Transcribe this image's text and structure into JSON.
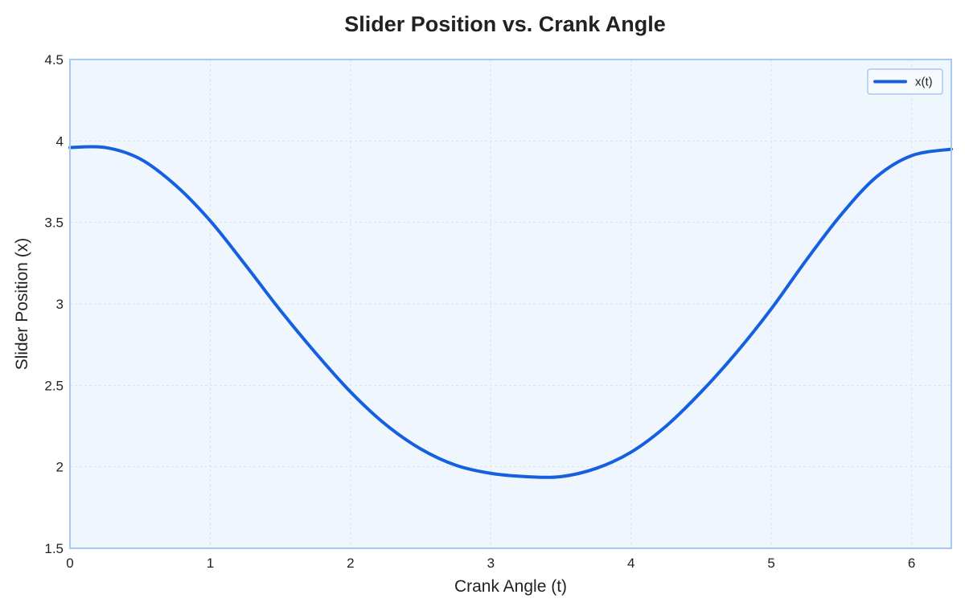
{
  "chart_data": {
    "type": "line",
    "title": "Slider Position vs. Crank Angle",
    "xlabel": "Crank Angle (t)",
    "ylabel": "Slider Position (x)",
    "xlim": [
      0,
      6.2832
    ],
    "ylim": [
      1.5,
      4.5
    ],
    "xticks": [
      0,
      1,
      2,
      3,
      4,
      5,
      6
    ],
    "xtick_labels": [
      "0",
      "1",
      "2",
      "3",
      "4",
      "5",
      "6"
    ],
    "yticks": [
      1.5,
      2,
      2.5,
      3,
      3.5,
      4,
      4.5
    ],
    "ytick_labels": [
      "1.5",
      "2",
      "2.5",
      "3",
      "3.5",
      "4",
      "4.5"
    ],
    "grid": true,
    "legend_position": "top-right",
    "series": [
      {
        "name": "x(t)",
        "color": "#1560e0",
        "x": [
          0,
          0.25,
          0.5,
          0.75,
          1.0,
          1.25,
          1.5,
          1.75,
          2.0,
          2.25,
          2.5,
          2.75,
          3.0,
          3.25,
          3.5,
          3.75,
          4.0,
          4.25,
          4.5,
          4.75,
          5.0,
          5.25,
          5.5,
          5.75,
          6.0,
          6.2832
        ],
        "y": [
          3.96,
          3.96,
          3.89,
          3.73,
          3.51,
          3.24,
          2.96,
          2.7,
          2.46,
          2.26,
          2.11,
          2.01,
          1.96,
          1.94,
          1.94,
          1.99,
          2.09,
          2.25,
          2.46,
          2.7,
          2.97,
          3.27,
          3.55,
          3.78,
          3.91,
          3.95
        ]
      }
    ]
  },
  "colors": {
    "plot_background": "#f0f6fd",
    "plot_border": "#a8c8f4",
    "grid": "#d6e3f3",
    "line": "#1560e0"
  }
}
